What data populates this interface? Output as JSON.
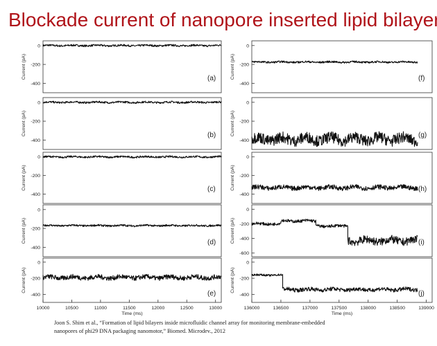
{
  "title": "Blockade current of nanopore inserted lipid bilayer",
  "citation": {
    "line1": "Joon S. Shim et al., “Formation of lipid bilayers inside microfluidic  channel array for monitoring membrane-embedded",
    "line2": "nanopores of phi29 DNA packaging nanomotor,” Biomed. Microdev., 2012"
  },
  "chart_data": [
    {
      "type": "line",
      "panel": "a",
      "xlabel": "",
      "ylabel": "Current (pA)",
      "xlim": [
        10000,
        13100
      ],
      "ylim": [
        -500,
        50
      ],
      "yticks": [
        0,
        -200,
        -400
      ],
      "series": [
        {
          "segments": [
            {
              "x": [
                10000,
                13100
              ],
              "level": 0,
              "noise": 10
            }
          ]
        }
      ]
    },
    {
      "type": "line",
      "panel": "b",
      "xlabel": "",
      "ylabel": "Current (pA)",
      "xlim": [
        10000,
        13100
      ],
      "ylim": [
        -500,
        50
      ],
      "yticks": [
        0,
        -200,
        -400
      ],
      "series": [
        {
          "segments": [
            {
              "x": [
                10000,
                13100
              ],
              "level": 0,
              "noise": 10
            }
          ]
        }
      ]
    },
    {
      "type": "line",
      "panel": "c",
      "xlabel": "",
      "ylabel": "Current (pA)",
      "xlim": [
        10000,
        13100
      ],
      "ylim": [
        -500,
        50
      ],
      "yticks": [
        0,
        -200,
        -400
      ],
      "series": [
        {
          "segments": [
            {
              "x": [
                10000,
                13100
              ],
              "level": 0,
              "noise": 10
            }
          ]
        }
      ]
    },
    {
      "type": "line",
      "panel": "d",
      "xlabel": "",
      "ylabel": "Current (pA)",
      "xlim": [
        10000,
        13100
      ],
      "ylim": [
        -500,
        50
      ],
      "yticks": [
        0,
        -200,
        -400
      ],
      "series": [
        {
          "segments": [
            {
              "x": [
                10000,
                13100
              ],
              "level": -170,
              "noise": 10
            }
          ]
        }
      ]
    },
    {
      "type": "line",
      "panel": "e",
      "xlabel": "Time (ms)",
      "ylabel": "Current (pA)",
      "xlim": [
        10000,
        13100
      ],
      "ylim": [
        -500,
        50
      ],
      "yticks": [
        0,
        -200,
        -400
      ],
      "xticks": [
        10000,
        10500,
        11000,
        11500,
        12000,
        12500,
        13000
      ],
      "series": [
        {
          "segments": [
            {
              "x": [
                10000,
                13100
              ],
              "level": -190,
              "noise": 30
            }
          ]
        }
      ]
    },
    {
      "type": "line",
      "panel": "f",
      "xlabel": "",
      "ylabel": "Current (pA)",
      "xlim": [
        136000,
        139100
      ],
      "ylim": [
        -500,
        50
      ],
      "yticks": [
        0,
        -200,
        -400
      ],
      "series": [
        {
          "segments": [
            {
              "x": [
                136000,
                138850
              ],
              "level": -175,
              "noise": 10
            }
          ]
        }
      ]
    },
    {
      "type": "line",
      "panel": "g",
      "xlabel": "",
      "ylabel": "Current (pA)",
      "xlim": [
        136000,
        139100
      ],
      "ylim": [
        -500,
        50
      ],
      "yticks": [
        0,
        -200,
        -400
      ],
      "series": [
        {
          "segments": [
            {
              "x": [
                136000,
                138850
              ],
              "level": -390,
              "noise": 60
            }
          ]
        }
      ]
    },
    {
      "type": "line",
      "panel": "h",
      "xlabel": "",
      "ylabel": "Current (pA)",
      "xlim": [
        136000,
        139100
      ],
      "ylim": [
        -500,
        50
      ],
      "yticks": [
        0,
        -200,
        -400
      ],
      "series": [
        {
          "segments": [
            {
              "x": [
                136000,
                138850
              ],
              "level": -330,
              "noise": 25
            }
          ]
        }
      ]
    },
    {
      "type": "line",
      "panel": "i",
      "xlabel": "",
      "ylabel": "Current (pA)",
      "xlim": [
        136000,
        139100
      ],
      "ylim": [
        -650,
        60
      ],
      "yticks": [
        0,
        -200,
        -400,
        -600
      ],
      "series": [
        {
          "segments": [
            {
              "x": [
                136000,
                136500
              ],
              "level": -200,
              "noise": 20
            },
            {
              "x": [
                136500,
                137100
              ],
              "level": -160,
              "noise": 20
            },
            {
              "x": [
                137100,
                137650
              ],
              "level": -230,
              "noise": 20
            },
            {
              "x": [
                137650,
                138850
              ],
              "level": -430,
              "noise": 55
            }
          ]
        }
      ]
    },
    {
      "type": "line",
      "panel": "j",
      "xlabel": "Time (ms)",
      "ylabel": "Current (pA)",
      "xlim": [
        136000,
        139100
      ],
      "ylim": [
        -500,
        50
      ],
      "yticks": [
        0,
        -200,
        -400
      ],
      "xticks": [
        136000,
        136500,
        137000,
        137500,
        138000,
        138500,
        139000
      ],
      "series": [
        {
          "segments": [
            {
              "x": [
                136000,
                136530
              ],
              "level": -160,
              "noise": 12
            },
            {
              "x": [
                136530,
                138850
              ],
              "level": -340,
              "noise": 25
            }
          ]
        }
      ]
    }
  ]
}
